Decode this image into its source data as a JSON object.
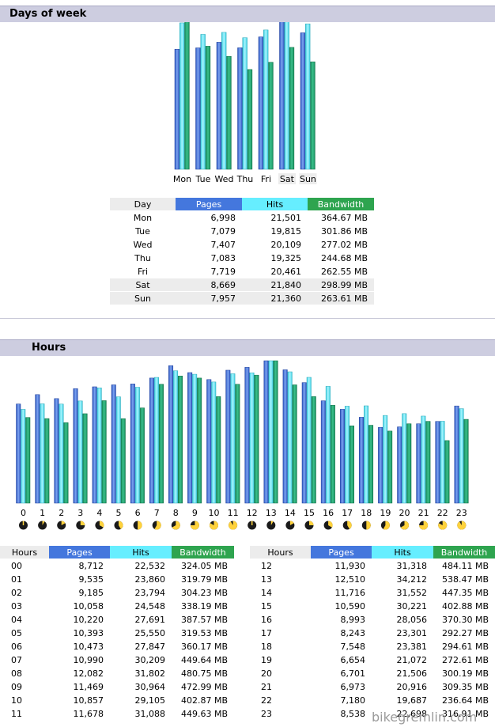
{
  "days_section": {
    "title": "Days of week",
    "table_headers": [
      "Day",
      "Pages",
      "Hits",
      "Bandwidth"
    ],
    "rows": [
      {
        "label": "Mon",
        "pages": "6,998",
        "hits": "21,501",
        "bandwidth": "364.67 MB",
        "highlight": false
      },
      {
        "label": "Tue",
        "pages": "7,079",
        "hits": "19,815",
        "bandwidth": "301.86 MB",
        "highlight": false
      },
      {
        "label": "Wed",
        "pages": "7,407",
        "hits": "20,109",
        "bandwidth": "277.02 MB",
        "highlight": false
      },
      {
        "label": "Thu",
        "pages": "7,083",
        "hits": "19,325",
        "bandwidth": "244.68 MB",
        "highlight": false
      },
      {
        "label": "Fri",
        "pages": "7,719",
        "hits": "20,461",
        "bandwidth": "262.55 MB",
        "highlight": false
      },
      {
        "label": "Sat",
        "pages": "8,669",
        "hits": "21,840",
        "bandwidth": "298.99 MB",
        "highlight": true
      },
      {
        "label": "Sun",
        "pages": "7,957",
        "hits": "21,360",
        "bandwidth": "263.61 MB",
        "highlight": true
      }
    ]
  },
  "hours_section": {
    "title": "Hours",
    "table_headers": [
      "Hours",
      "Pages",
      "Hits",
      "Bandwidth"
    ],
    "rows": [
      {
        "label": "00",
        "pages": "8,712",
        "hits": "22,532",
        "bandwidth": "324.05 MB"
      },
      {
        "label": "01",
        "pages": "9,535",
        "hits": "23,860",
        "bandwidth": "319.79 MB"
      },
      {
        "label": "02",
        "pages": "9,185",
        "hits": "23,794",
        "bandwidth": "304.23 MB"
      },
      {
        "label": "03",
        "pages": "10,058",
        "hits": "24,548",
        "bandwidth": "338.19 MB"
      },
      {
        "label": "04",
        "pages": "10,220",
        "hits": "27,691",
        "bandwidth": "387.57 MB"
      },
      {
        "label": "05",
        "pages": "10,393",
        "hits": "25,550",
        "bandwidth": "319.53 MB"
      },
      {
        "label": "06",
        "pages": "10,473",
        "hits": "27,847",
        "bandwidth": "360.17 MB"
      },
      {
        "label": "07",
        "pages": "10,990",
        "hits": "30,209",
        "bandwidth": "449.64 MB"
      },
      {
        "label": "08",
        "pages": "12,082",
        "hits": "31,802",
        "bandwidth": "480.75 MB"
      },
      {
        "label": "09",
        "pages": "11,469",
        "hits": "30,964",
        "bandwidth": "472.99 MB"
      },
      {
        "label": "10",
        "pages": "10,857",
        "hits": "29,105",
        "bandwidth": "402.87 MB"
      },
      {
        "label": "11",
        "pages": "11,678",
        "hits": "31,088",
        "bandwidth": "449.63 MB"
      },
      {
        "label": "12",
        "pages": "11,930",
        "hits": "31,318",
        "bandwidth": "484.11 MB"
      },
      {
        "label": "13",
        "pages": "12,510",
        "hits": "34,212",
        "bandwidth": "538.47 MB"
      },
      {
        "label": "14",
        "pages": "11,716",
        "hits": "31,552",
        "bandwidth": "447.35 MB"
      },
      {
        "label": "15",
        "pages": "10,590",
        "hits": "30,221",
        "bandwidth": "402.88 MB"
      },
      {
        "label": "16",
        "pages": "8,993",
        "hits": "28,056",
        "bandwidth": "370.30 MB"
      },
      {
        "label": "17",
        "pages": "8,243",
        "hits": "23,301",
        "bandwidth": "292.27 MB"
      },
      {
        "label": "18",
        "pages": "7,548",
        "hits": "23,381",
        "bandwidth": "294.61 MB"
      },
      {
        "label": "19",
        "pages": "6,654",
        "hits": "21,072",
        "bandwidth": "272.61 MB"
      },
      {
        "label": "20",
        "pages": "6,701",
        "hits": "21,506",
        "bandwidth": "300.19 MB"
      },
      {
        "label": "21",
        "pages": "6,973",
        "hits": "20,916",
        "bandwidth": "309.35 MB"
      },
      {
        "label": "22",
        "pages": "7,180",
        "hits": "19,687",
        "bandwidth": "236.64 MB"
      },
      {
        "label": "23",
        "pages": "8,538",
        "hits": "22,698",
        "bandwidth": "316.91 MB"
      }
    ]
  },
  "watermark": "bikegremlin.com",
  "colors": {
    "pages": "#4477dd",
    "hits": "#66eeff",
    "bandwidth": "#2ea44f",
    "section_bg": "#cdcde0",
    "row_shade": "#ececec"
  },
  "chart_data": [
    {
      "type": "bar",
      "categories": [
        "Mon",
        "Tue",
        "Wed",
        "Thu",
        "Fri",
        "Sat",
        "Sun"
      ],
      "series": [
        {
          "name": "Pages",
          "values": [
            6998,
            7079,
            7407,
            7083,
            7719,
            8669,
            7957
          ],
          "color": "#4477dd"
        },
        {
          "name": "Hits",
          "values": [
            21501,
            19815,
            20109,
            19325,
            20461,
            21840,
            21360
          ],
          "color": "#66eeff"
        },
        {
          "name": "Bandwidth",
          "values": [
            364.67,
            301.86,
            277.02,
            244.68,
            262.55,
            298.99,
            263.61
          ],
          "color": "#2ea44f"
        }
      ],
      "highlight_categories": [
        "Sat",
        "Sun"
      ]
    },
    {
      "type": "bar",
      "categories": [
        "0",
        "1",
        "2",
        "3",
        "4",
        "5",
        "6",
        "7",
        "8",
        "9",
        "10",
        "11",
        "12",
        "13",
        "14",
        "15",
        "16",
        "17",
        "18",
        "19",
        "20",
        "21",
        "22",
        "23"
      ],
      "series": [
        {
          "name": "Pages",
          "values": [
            8712,
            9535,
            9185,
            10058,
            10220,
            10393,
            10473,
            10990,
            12082,
            11469,
            10857,
            11678,
            11930,
            12510,
            11716,
            10590,
            8993,
            8243,
            7548,
            6654,
            6701,
            6973,
            7180,
            8538
          ],
          "color": "#4477dd"
        },
        {
          "name": "Hits",
          "values": [
            22532,
            23860,
            23794,
            24548,
            27691,
            25550,
            27847,
            30209,
            31802,
            30964,
            29105,
            31088,
            31318,
            34212,
            31552,
            30221,
            28056,
            23301,
            23381,
            21072,
            21506,
            20916,
            19687,
            22698
          ],
          "color": "#66eeff"
        },
        {
          "name": "Bandwidth",
          "values": [
            324.05,
            319.79,
            304.23,
            338.19,
            387.57,
            319.53,
            360.17,
            449.64,
            480.75,
            472.99,
            402.87,
            449.63,
            484.11,
            538.47,
            447.35,
            402.88,
            370.3,
            292.27,
            294.61,
            272.61,
            300.19,
            309.35,
            236.64,
            316.91
          ],
          "color": "#2ea44f"
        }
      ]
    }
  ]
}
